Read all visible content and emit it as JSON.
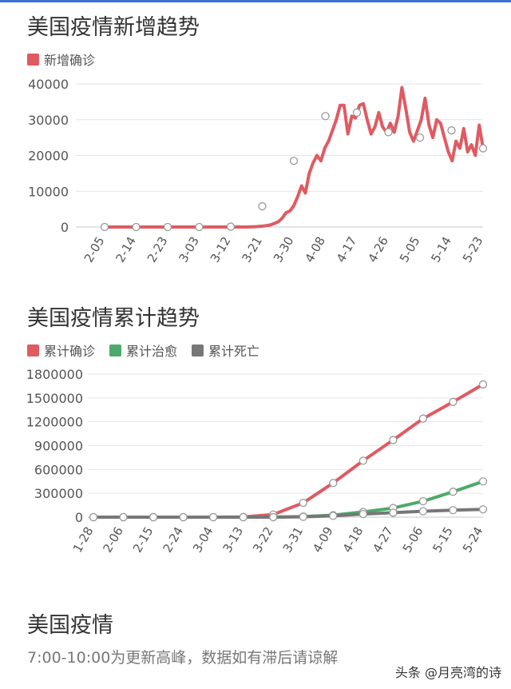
{
  "chart_data": [
    {
      "type": "line",
      "title": "美国疫情新增趋势",
      "legend": [
        "新增确诊"
      ],
      "legend_position": "top-left",
      "grid": true,
      "ylim": [
        0,
        40000
      ],
      "yticks": [
        "0",
        "10000",
        "20000",
        "30000",
        "40000"
      ],
      "xticks": [
        "2-05",
        "2-14",
        "2-23",
        "3-03",
        "3-12",
        "3-21",
        "3-30",
        "4-08",
        "4-17",
        "4-26",
        "5-05",
        "5-14",
        "5-23"
      ],
      "series": [
        {
          "name": "新增确诊",
          "color": "#e05a62",
          "values": [
            0,
            0,
            0,
            0,
            0,
            0,
            0,
            0,
            0,
            0,
            0,
            0,
            0,
            0,
            0,
            0,
            0,
            0,
            0,
            0,
            0,
            0,
            0,
            0,
            0,
            0,
            0,
            0,
            0,
            0,
            0,
            0,
            0,
            0,
            0,
            0,
            0,
            0,
            50,
            80,
            150,
            250,
            400,
            600,
            1000,
            1500,
            2500,
            4000,
            4500,
            6000,
            8500,
            11500,
            9500,
            15000,
            18000,
            20000,
            18500,
            22000,
            24000,
            27000,
            30000,
            34000,
            34000,
            26000,
            31000,
            30500,
            34000,
            34500,
            30000,
            26000,
            28000,
            32000,
            28000,
            26500,
            29000,
            26500,
            31000,
            39000,
            33000,
            26500,
            24000,
            27000,
            30000,
            36000,
            28500,
            25000,
            30000,
            29000,
            25000,
            21000,
            18500,
            24000,
            22000,
            27500,
            21000,
            23000,
            20000,
            28500,
            22000
          ],
          "markers": [
            {
              "x": "2-05",
              "y": 0
            },
            {
              "x": "2-14",
              "y": 0
            },
            {
              "x": "2-23",
              "y": 0
            },
            {
              "x": "3-03",
              "y": 0
            },
            {
              "x": "3-12",
              "y": 100
            },
            {
              "x": "3-21",
              "y": 5800
            },
            {
              "x": "3-30",
              "y": 18500
            },
            {
              "x": "4-08",
              "y": 31000
            },
            {
              "x": "4-17",
              "y": 32000
            },
            {
              "x": "4-26",
              "y": 26500
            },
            {
              "x": "5-05",
              "y": 25000
            },
            {
              "x": "5-14",
              "y": 27000
            },
            {
              "x": "5-23",
              "y": 22000
            }
          ]
        }
      ]
    },
    {
      "type": "line",
      "title": "美国疫情累计趋势",
      "legend": [
        "累计确诊",
        "累计治愈",
        "累计死亡"
      ],
      "legend_position": "top-left",
      "grid": true,
      "ylim": [
        0,
        1800000
      ],
      "yticks": [
        "0",
        "300000",
        "600000",
        "900000",
        "1200000",
        "1500000",
        "1800000"
      ],
      "xticks": [
        "1-28",
        "2-06",
        "2-15",
        "2-24",
        "3-04",
        "3-13",
        "3-22",
        "3-31",
        "4-09",
        "4-18",
        "4-27",
        "5-06",
        "5-15",
        "5-24"
      ],
      "series": [
        {
          "name": "累计确诊",
          "color": "#e05a62",
          "points": [
            {
              "x": "1-28",
              "y": 0
            },
            {
              "x": "2-06",
              "y": 0
            },
            {
              "x": "2-15",
              "y": 0
            },
            {
              "x": "2-24",
              "y": 0
            },
            {
              "x": "3-04",
              "y": 100
            },
            {
              "x": "3-13",
              "y": 2500
            },
            {
              "x": "3-22",
              "y": 33000
            },
            {
              "x": "3-31",
              "y": 180000
            },
            {
              "x": "4-09",
              "y": 430000
            },
            {
              "x": "4-18",
              "y": 710000
            },
            {
              "x": "4-27",
              "y": 970000
            },
            {
              "x": "5-06",
              "y": 1240000
            },
            {
              "x": "5-15",
              "y": 1450000
            },
            {
              "x": "5-24",
              "y": 1670000
            }
          ]
        },
        {
          "name": "累计治愈",
          "color": "#4caa6a",
          "points": [
            {
              "x": "1-28",
              "y": 0
            },
            {
              "x": "2-06",
              "y": 0
            },
            {
              "x": "2-15",
              "y": 0
            },
            {
              "x": "2-24",
              "y": 0
            },
            {
              "x": "3-04",
              "y": 0
            },
            {
              "x": "3-13",
              "y": 0
            },
            {
              "x": "3-22",
              "y": 0
            },
            {
              "x": "3-31",
              "y": 7000
            },
            {
              "x": "4-09",
              "y": 25000
            },
            {
              "x": "4-18",
              "y": 65000
            },
            {
              "x": "4-27",
              "y": 115000
            },
            {
              "x": "5-06",
              "y": 200000
            },
            {
              "x": "5-15",
              "y": 320000
            },
            {
              "x": "5-24",
              "y": 450000
            }
          ]
        },
        {
          "name": "累计死亡",
          "color": "#777777",
          "points": [
            {
              "x": "1-28",
              "y": 0
            },
            {
              "x": "2-06",
              "y": 0
            },
            {
              "x": "2-15",
              "y": 0
            },
            {
              "x": "2-24",
              "y": 0
            },
            {
              "x": "3-04",
              "y": 0
            },
            {
              "x": "3-13",
              "y": 0
            },
            {
              "x": "3-22",
              "y": 400
            },
            {
              "x": "3-31",
              "y": 4000
            },
            {
              "x": "4-09",
              "y": 16000
            },
            {
              "x": "4-18",
              "y": 39000
            },
            {
              "x": "4-27",
              "y": 56000
            },
            {
              "x": "5-06",
              "y": 74000
            },
            {
              "x": "5-15",
              "y": 88000
            },
            {
              "x": "5-24",
              "y": 98000
            }
          ]
        }
      ]
    }
  ],
  "section": {
    "title": "美国疫情",
    "notice": "7:00-10:00为更新高峰，数据如有滞后请谅解"
  },
  "watermark": "头条 @月亮湾的诗"
}
